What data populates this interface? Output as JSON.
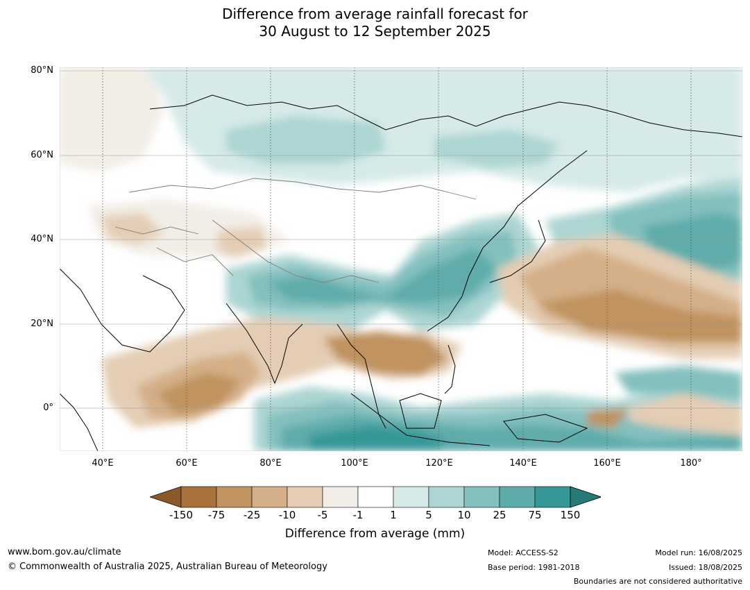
{
  "title_line1": "Difference from average rainfall forecast for",
  "title_line2": "30 August to 12 September 2025",
  "lat_labels": [
    "80°N",
    "60°N",
    "40°N",
    "20°N",
    "0°"
  ],
  "lon_labels": [
    "40°E",
    "60°E",
    "80°E",
    "100°E",
    "120°E",
    "140°E",
    "160°E",
    "180°"
  ],
  "colorbar": {
    "title": "Difference from average (mm)",
    "tick_labels": [
      "-150",
      "-75",
      "-25",
      "-10",
      "-5",
      "-1",
      "1",
      "5",
      "10",
      "25",
      "75",
      "150"
    ],
    "colors": [
      "#8c5a2a",
      "#a9713b",
      "#c0935f",
      "#d4af87",
      "#e4cdb4",
      "#f2ede6",
      "#ffffff",
      "#d6eae8",
      "#acd5d3",
      "#83c0be",
      "#5eacaa",
      "#359896",
      "#287a78"
    ]
  },
  "footer": {
    "url": "www.bom.gov.au/climate",
    "copyright": "© Commonwealth of Australia 2025, Australian Bureau of Meteorology",
    "model": "Model: ACCESS-S2",
    "base_period": "Base period: 1981-2018",
    "model_run": "Model run: 16/08/2025",
    "issued": "Issued: 18/08/2025",
    "disclaimer": "Boundaries are not considered authoritative"
  }
}
